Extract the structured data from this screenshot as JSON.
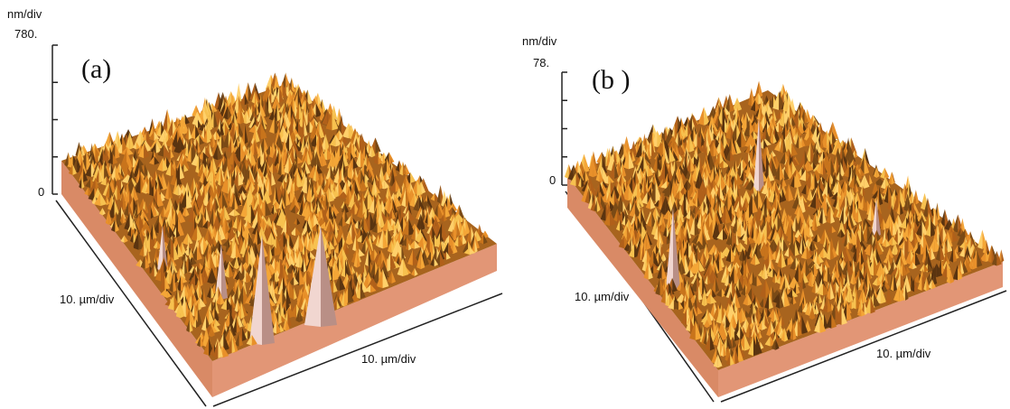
{
  "panels": [
    {
      "label": "(a)",
      "z_unit": "nm/div",
      "z_max": "780.",
      "z_min": "0",
      "x_axis": "10. µm/div",
      "y_axis": "10. µm/div"
    },
    {
      "label": "(b )",
      "z_unit": "nm/div",
      "z_max": "78.",
      "z_min": "0",
      "x_axis": "10. µm/div",
      "y_axis": "10. µm/div"
    }
  ]
}
